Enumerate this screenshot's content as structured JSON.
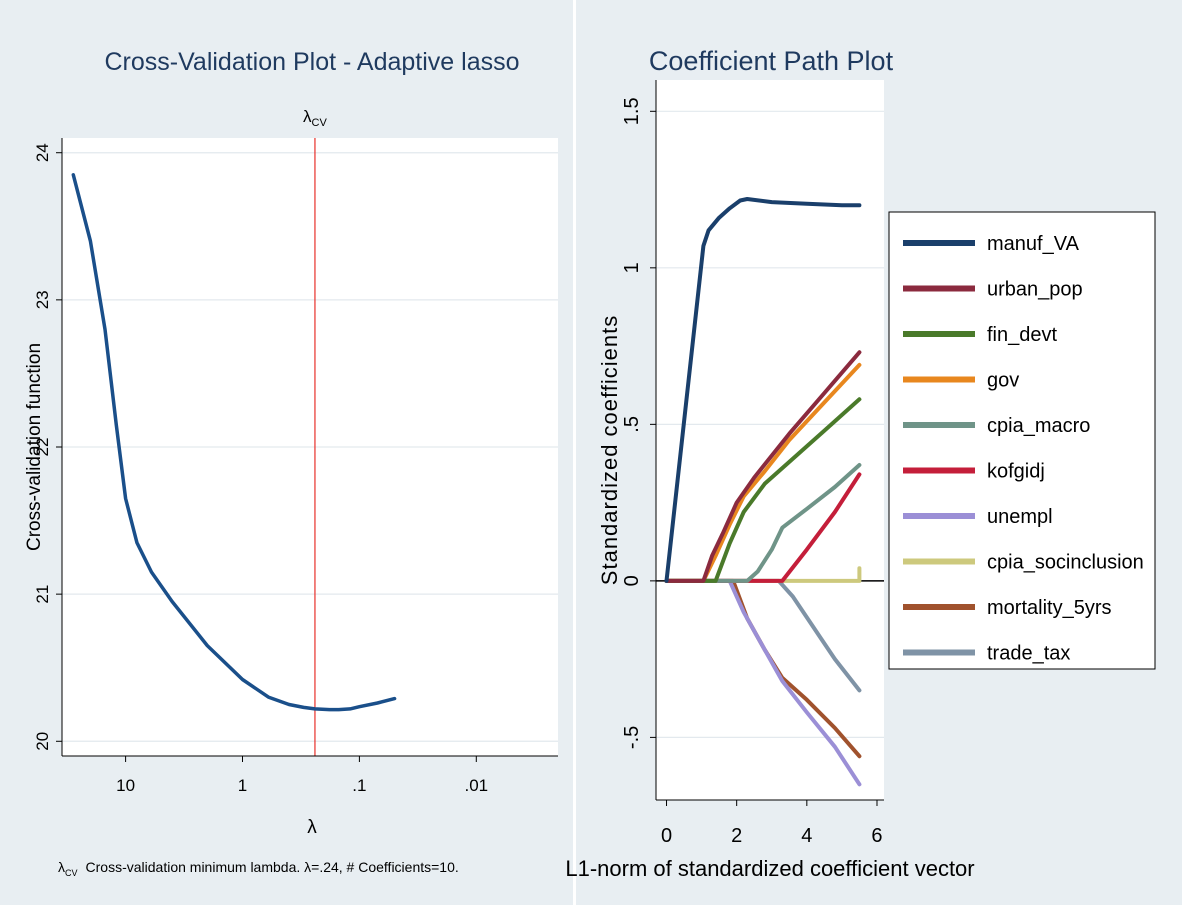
{
  "chart_data": [
    {
      "type": "line",
      "title": "Cross-Validation Plot - Adaptive lasso",
      "xlabel": "λ",
      "ylabel": "Cross-validation function",
      "x_scale": "log",
      "x_reversed": true,
      "xlim": [
        35,
        0.002
      ],
      "ylim": [
        19.9,
        24.1
      ],
      "x_ticks": [
        10,
        1,
        0.1,
        0.01
      ],
      "x_tick_labels": [
        "10",
        "1",
        ".1",
        ".01"
      ],
      "y_ticks": [
        20,
        21,
        22,
        23,
        24
      ],
      "y_tick_labels": [
        "20",
        "21",
        "22",
        "23",
        "24"
      ],
      "grid": true,
      "series": [
        {
          "color": "#1a4f8a",
          "x": [
            28,
            20,
            15,
            12,
            10,
            8,
            6,
            4,
            2,
            1,
            0.6,
            0.4,
            0.3,
            0.24,
            0.18,
            0.15,
            0.12,
            0.1,
            0.07,
            0.05
          ],
          "y": [
            23.85,
            23.4,
            22.8,
            22.15,
            21.65,
            21.35,
            21.15,
            20.95,
            20.65,
            20.42,
            20.3,
            20.25,
            20.23,
            20.22,
            20.215,
            20.215,
            20.22,
            20.235,
            20.26,
            20.29
          ]
        }
      ],
      "reference_line": {
        "x": 0.24,
        "label": "λ",
        "label_sub": "CV",
        "color": "#e8302a"
      },
      "note": {
        "symbol": "λ",
        "symbol_sub": "CV",
        "text": "Cross-validation minimum lambda.  λ=.24, # Coefficients=10."
      }
    },
    {
      "type": "line",
      "title": "Coefficient Path Plot",
      "xlabel": "L1-norm of standardized coefficient vector",
      "ylabel": "Standardized coefficients",
      "xlim": [
        -0.3,
        6.2
      ],
      "ylim": [
        -0.7,
        1.6
      ],
      "x_ticks": [
        0,
        2,
        4,
        6
      ],
      "x_tick_labels": [
        "0",
        "2",
        "4",
        "6"
      ],
      "y_ticks": [
        -0.5,
        0,
        0.5,
        1,
        1.5
      ],
      "y_tick_labels": [
        "-.5",
        "0",
        ".5",
        "1",
        "1.5"
      ],
      "grid": true,
      "zero_line": true,
      "legend_position": "right",
      "series": [
        {
          "name": "manuf_VA",
          "color": "#1a3f6b",
          "x": [
            0,
            1.05,
            1.2,
            1.5,
            1.8,
            2.1,
            2.3,
            3,
            4,
            5,
            5.5
          ],
          "y": [
            0,
            1.07,
            1.12,
            1.16,
            1.19,
            1.215,
            1.22,
            1.21,
            1.205,
            1.2,
            1.2
          ]
        },
        {
          "name": "urban_pop",
          "color": "#8b2a3e",
          "x": [
            0,
            1.05,
            1.3,
            1.6,
            2.0,
            2.5,
            3.5,
            4.5,
            5.5
          ],
          "y": [
            0,
            0,
            0.08,
            0.15,
            0.25,
            0.33,
            0.47,
            0.6,
            0.73
          ]
        },
        {
          "name": "fin_devt",
          "color": "#4a7a2a",
          "x": [
            0,
            1.4,
            1.8,
            2.2,
            2.8,
            3.5,
            4.5,
            5.5
          ],
          "y": [
            0,
            0,
            0.12,
            0.22,
            0.31,
            0.38,
            0.48,
            0.58
          ]
        },
        {
          "name": "gov",
          "color": "#e8871e",
          "x": [
            0,
            1.05,
            1.4,
            1.8,
            2.2,
            2.8,
            3.5,
            4.5,
            5.5
          ],
          "y": [
            0,
            0,
            0.08,
            0.18,
            0.27,
            0.35,
            0.45,
            0.57,
            0.69
          ]
        },
        {
          "name": "cpia_macro",
          "color": "#6f9488",
          "x": [
            0,
            2.3,
            2.6,
            3.0,
            3.3,
            4.0,
            4.8,
            5.5
          ],
          "y": [
            0,
            0,
            0.03,
            0.1,
            0.17,
            0.23,
            0.3,
            0.37
          ]
        },
        {
          "name": "kofgidj",
          "color": "#c41e3a",
          "x": [
            0,
            3.3,
            4.0,
            4.8,
            5.5
          ],
          "y": [
            0,
            0,
            0.1,
            0.22,
            0.34
          ]
        },
        {
          "name": "unempl",
          "color": "#9b8fd6",
          "x": [
            0,
            1.8,
            2.2,
            2.7,
            3.3,
            4.0,
            4.8,
            5.5
          ],
          "y": [
            0,
            0,
            -0.1,
            -0.2,
            -0.32,
            -0.42,
            -0.53,
            -0.65
          ]
        },
        {
          "name": "cpia_socinclusion",
          "color": "#cdc97d",
          "x": [
            0,
            5.4,
            5.5,
            5.5
          ],
          "y": [
            0,
            0,
            0,
            0.04
          ]
        },
        {
          "name": "mortality_5yrs",
          "color": "#a0522d",
          "x": [
            0,
            1.9,
            2.3,
            2.8,
            3.3,
            4.0,
            4.8,
            5.5
          ],
          "y": [
            0,
            0,
            -0.12,
            -0.22,
            -0.31,
            -0.38,
            -0.47,
            -0.56
          ]
        },
        {
          "name": "trade_tax",
          "color": "#7f93a6",
          "x": [
            0,
            3.2,
            3.6,
            4.2,
            4.8,
            5.5
          ],
          "y": [
            0,
            0,
            -0.05,
            -0.15,
            -0.25,
            -0.35
          ]
        }
      ]
    }
  ]
}
